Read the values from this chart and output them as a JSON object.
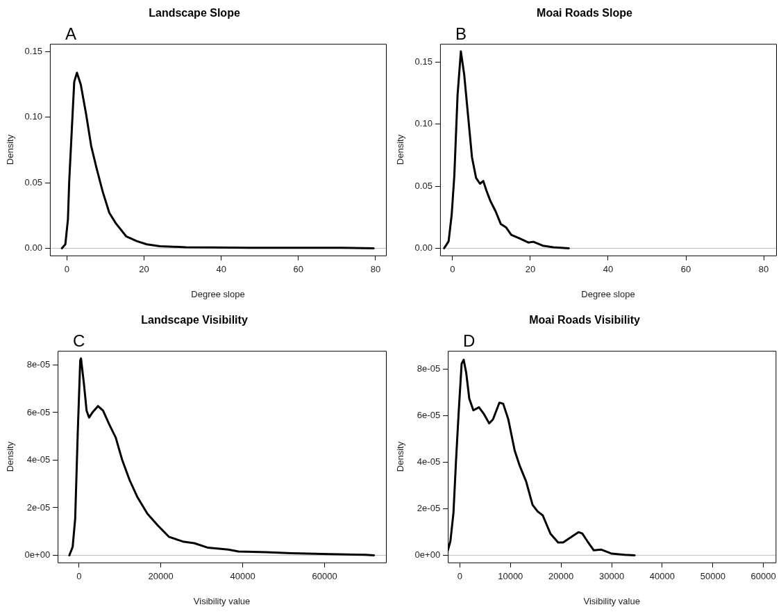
{
  "chart_data": [
    {
      "type": "line",
      "title": "Landscape Slope",
      "xlabel": "Degree slope",
      "ylabel": "Density",
      "annotations": [
        "A"
      ],
      "grid": false,
      "legend": false,
      "marker": "none",
      "line_style": "solid",
      "series": [
        {
          "color": "#000000",
          "x": [
            -1.3,
            -0.4,
            0.27,
            0.6,
            1.3,
            1.9,
            2.6,
            3.6,
            5.0,
            6.3,
            7.7,
            9.3,
            11.0,
            12.7,
            15.4,
            18.1,
            20.7,
            24.1,
            30.8,
            37.5,
            47.6,
            61,
            71,
            79.5
          ],
          "values": [
            0,
            0.003,
            0.022,
            0.051,
            0.092,
            0.127,
            0.134,
            0.125,
            0.102,
            0.078,
            0.061,
            0.043,
            0.027,
            0.019,
            0.009,
            0.0055,
            0.003,
            0.0016,
            0.0008,
            0.0006,
            0.0004,
            0.0004,
            0.0003,
            0
          ]
        }
      ],
      "xlim": [
        -4.4,
        82.7
      ],
      "xticks": [
        0,
        20,
        40,
        60,
        80
      ],
      "ylim": [
        -0.0055,
        0.156
      ],
      "yticks": [
        {
          "value": 0,
          "label": "0.00"
        },
        {
          "value": 0.05,
          "label": "0.05"
        },
        {
          "value": 0.1,
          "label": "0.10"
        },
        {
          "value": 0.15,
          "label": "0.15"
        }
      ],
      "ref_lines": [
        {
          "axis": "y",
          "value": 0,
          "color": "#bebebe"
        }
      ]
    },
    {
      "type": "line",
      "title": "Moai Roads Slope",
      "xlabel": "Degree slope",
      "ylabel": "Density",
      "annotations": [
        "B"
      ],
      "grid": false,
      "legend": false,
      "marker": "none",
      "line_style": "solid",
      "series": [
        {
          "color": "#000000",
          "x": [
            -2.15,
            -1.0,
            -0.2,
            0.47,
            1.3,
            2.15,
            3.0,
            4.0,
            5.0,
            6.05,
            7.06,
            7.9,
            8.74,
            9.75,
            11.1,
            12.4,
            13.8,
            15.1,
            17.1,
            19.5,
            20.8,
            23.2,
            25.9,
            29.9
          ],
          "values": [
            0,
            0.0056,
            0.0275,
            0.0588,
            0.1235,
            0.1586,
            0.14,
            0.1068,
            0.0734,
            0.0567,
            0.052,
            0.0542,
            0.0463,
            0.038,
            0.0296,
            0.0196,
            0.0167,
            0.0108,
            0.0081,
            0.0046,
            0.0052,
            0.0021,
            0.0008,
            0
          ]
        }
      ],
      "xlim": [
        -3.2,
        83.2
      ],
      "xticks": [
        0,
        20,
        40,
        60,
        80
      ],
      "ylim": [
        -0.0058,
        0.1646
      ],
      "yticks": [
        {
          "value": 0,
          "label": "0.00"
        },
        {
          "value": 0.05,
          "label": "0.05"
        },
        {
          "value": 0.1,
          "label": "0.10"
        },
        {
          "value": 0.15,
          "label": "0.15"
        }
      ],
      "ref_lines": [
        {
          "axis": "y",
          "value": 0,
          "color": "#bebebe"
        }
      ]
    },
    {
      "type": "line",
      "title": "Landscape Visibility",
      "xlabel": "Visibility value",
      "ylabel": "Density",
      "annotations": [
        "C"
      ],
      "grid": false,
      "legend": false,
      "marker": "none",
      "line_style": "solid",
      "series": [
        {
          "color": "#000000",
          "x": [
            -2350,
            -1546,
            -928,
            -309,
            309,
            495,
            1237,
            1856,
            2474,
            3402,
            4639,
            5876,
            7423,
            8969,
            10515,
            12371,
            14227,
            16701,
            19175,
            21959,
            25361,
            28144,
            31546,
            36495,
            38969,
            45773,
            51959,
            61237,
            69897,
            72062
          ],
          "values": [
            0,
            3.5e-06,
            1.54e-05,
            5.11e-05,
            8.19e-05,
            8.27e-05,
            7.16e-05,
            6.08e-05,
            5.79e-05,
            6.03e-05,
            6.27e-05,
            6.08e-05,
            5.49e-05,
            4.95e-05,
            4.03e-05,
            3.16e-05,
            2.46e-05,
            1.75e-05,
            1.27e-05,
            7.8e-06,
            5.8e-06,
            5.1e-06,
            3.2e-06,
            2.4e-06,
            1.6e-06,
            1.3e-06,
            9e-07,
            5e-07,
            2e-07,
            0
          ]
        }
      ],
      "xlim": [
        -5200,
        75000
      ],
      "xticks": [
        0,
        20000,
        40000,
        60000
      ],
      "ylim": [
        -3e-06,
        8.59e-05
      ],
      "yticks": [
        {
          "value": 0,
          "label": "0e+00"
        },
        {
          "value": 2e-05,
          "label": "2e-05"
        },
        {
          "value": 4e-05,
          "label": "4e-05"
        },
        {
          "value": 6e-05,
          "label": "6e-05"
        },
        {
          "value": 8e-05,
          "label": "8e-05"
        }
      ],
      "ref_lines": [
        {
          "axis": "y",
          "value": 0,
          "color": "#bebebe"
        }
      ]
    },
    {
      "type": "line",
      "title": "Moai Roads Visibility",
      "xlabel": "Visibility value",
      "ylabel": "Density",
      "annotations": [
        "D"
      ],
      "grid": false,
      "legend": false,
      "marker": "none",
      "line_style": "solid",
      "series": [
        {
          "color": "#000000",
          "x": [
            -2370,
            -1866,
            -1261,
            -756,
            -252,
            353,
            756,
            1261,
            1866,
            2672,
            3782,
            4790,
            5798,
            6555,
            7815,
            8571,
            9580,
            10840,
            11849,
            13109,
            14370,
            15378,
            16387,
            17899,
            19412,
            20420,
            21933,
            23445,
            24202,
            25210,
            26471,
            27983,
            29999,
            32521,
            34538
          ],
          "values": [
            2.1e-06,
            6e-06,
            1.82e-05,
            4.05e-05,
            6.05e-05,
            8.22e-05,
            8.39e-05,
            7.83e-05,
            6.72e-05,
            6.22e-05,
            6.35e-05,
            6.05e-05,
            5.66e-05,
            5.83e-05,
            6.55e-05,
            6.5e-05,
            5.83e-05,
            4.49e-05,
            3.83e-05,
            3.16e-05,
            2.16e-05,
            1.88e-05,
            1.71e-05,
            9.3e-06,
            5.5e-06,
            5.5e-06,
            7.7e-06,
            9.9e-06,
            9.3e-06,
            6e-06,
            2.1e-06,
            2.4e-06,
            7e-07,
            2e-07,
            0
          ]
        }
      ],
      "xlim": [
        -2370,
        62420
      ],
      "xticks": [
        0,
        10000,
        20000,
        30000,
        40000,
        50000,
        60000
      ],
      "ylim": [
        -3.1e-06,
        8.77e-05
      ],
      "yticks": [
        {
          "value": 0,
          "label": "0e+00"
        },
        {
          "value": 2e-05,
          "label": "2e-05"
        },
        {
          "value": 4e-05,
          "label": "4e-05"
        },
        {
          "value": 6e-05,
          "label": "6e-05"
        },
        {
          "value": 8e-05,
          "label": "8e-05"
        }
      ],
      "ref_lines": [
        {
          "axis": "y",
          "value": 0,
          "color": "#bebebe"
        }
      ]
    }
  ]
}
